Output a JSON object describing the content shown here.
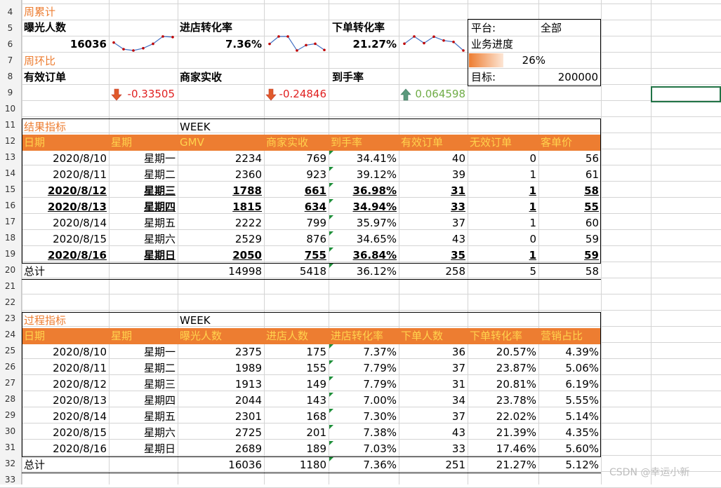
{
  "summary": {
    "weekly_cum_label": "周累计",
    "exposure_label": "曝光人数",
    "exposure_value": "16036",
    "store_conv_label": "进店转化率",
    "store_conv_value": "7.36%",
    "order_conv_label": "下单转化率",
    "order_conv_value": "21.27%",
    "wow_label": "周环比",
    "valid_orders_label": "有效订单",
    "valid_orders_change": "-0.33505",
    "merchant_income_label": "商家实收",
    "merchant_income_change": "-0.24846",
    "arrival_rate_label": "到手率",
    "arrival_rate_change": "0.064598"
  },
  "panel": {
    "platform_label": "平台:",
    "platform_value": "全部",
    "progress_label": "业务进度",
    "progress_value": "26%",
    "progress_fraction": 0.26,
    "target_label": "目标:",
    "target_value": "200000"
  },
  "result": {
    "title": "结果指标",
    "week_label": "WEEK",
    "headers": [
      "日期",
      "星期",
      "GMV",
      "商家实收",
      "到手率",
      "有效订单",
      "无效订单",
      "客单价"
    ],
    "rows": [
      [
        "2020/8/10",
        "星期一",
        "2234",
        "769",
        "34.41%",
        "40",
        "0",
        "56"
      ],
      [
        "2020/8/11",
        "星期二",
        "2360",
        "923",
        "39.12%",
        "39",
        "1",
        "61"
      ],
      [
        "2020/8/12",
        "星期三",
        "1788",
        "661",
        "36.98%",
        "31",
        "1",
        "58"
      ],
      [
        "2020/8/13",
        "星期四",
        "1815",
        "634",
        "34.94%",
        "33",
        "1",
        "55"
      ],
      [
        "2020/8/14",
        "星期五",
        "2222",
        "799",
        "35.97%",
        "37",
        "1",
        "60"
      ],
      [
        "2020/8/15",
        "星期六",
        "2529",
        "876",
        "34.65%",
        "43",
        "0",
        "59"
      ],
      [
        "2020/8/16",
        "星期日",
        "2050",
        "755",
        "36.84%",
        "35",
        "1",
        "59"
      ]
    ],
    "bold_rows": [
      2,
      3,
      6
    ],
    "total": [
      "总计",
      "",
      "14998",
      "5418",
      "36.12%",
      "258",
      "5",
      "58"
    ]
  },
  "process": {
    "title": "过程指标",
    "week_label": "WEEK",
    "headers": [
      "日期",
      "星期",
      "曝光人数",
      "进店人数",
      "进店转化率",
      "下单人数",
      "下单转化率",
      "营销占比"
    ],
    "rows": [
      [
        "2020/8/10",
        "星期一",
        "2375",
        "175",
        "7.37%",
        "36",
        "20.57%",
        "4.39%"
      ],
      [
        "2020/8/11",
        "星期二",
        "1989",
        "155",
        "7.79%",
        "37",
        "23.87%",
        "5.06%"
      ],
      [
        "2020/8/12",
        "星期三",
        "1913",
        "149",
        "7.79%",
        "31",
        "20.81%",
        "6.19%"
      ],
      [
        "2020/8/13",
        "星期四",
        "2044",
        "143",
        "7.00%",
        "34",
        "23.78%",
        "5.55%"
      ],
      [
        "2020/8/14",
        "星期五",
        "2301",
        "168",
        "7.30%",
        "37",
        "22.02%",
        "5.14%"
      ],
      [
        "2020/8/15",
        "星期六",
        "2725",
        "201",
        "7.38%",
        "43",
        "21.39%",
        "4.35%"
      ],
      [
        "2020/8/16",
        "星期日",
        "2689",
        "189",
        "7.03%",
        "33",
        "17.46%",
        "5.60%"
      ]
    ],
    "total": [
      "总计",
      "",
      "16036",
      "1180",
      "7.36%",
      "251",
      "21.27%",
      "5.12%"
    ]
  },
  "sparklines": {
    "exposure": [
      2375,
      1989,
      1913,
      2044,
      2301,
      2725,
      2689
    ],
    "store_conv": [
      7.37,
      7.79,
      7.79,
      7.0,
      7.3,
      7.38,
      7.03
    ],
    "order_conv": [
      20.57,
      23.87,
      20.81,
      23.78,
      22.02,
      21.39,
      17.46
    ]
  },
  "row_numbers": [
    "4",
    "5",
    "6",
    "7",
    "8",
    "9",
    "10",
    "11",
    "12",
    "13",
    "14",
    "15",
    "16",
    "17",
    "18",
    "19",
    "20",
    "21",
    "22",
    "23",
    "24",
    "25",
    "26",
    "27",
    "28",
    "29",
    "30",
    "31",
    "32",
    "33"
  ],
  "watermark": "CSDN @幸运小新",
  "colors": {
    "accent": "#ed7d31",
    "header_text": "#ffd24d",
    "negative": "#e02020",
    "positive": "#70ad47",
    "spark_line": "#4472c4",
    "spark_point": "#c00000"
  }
}
